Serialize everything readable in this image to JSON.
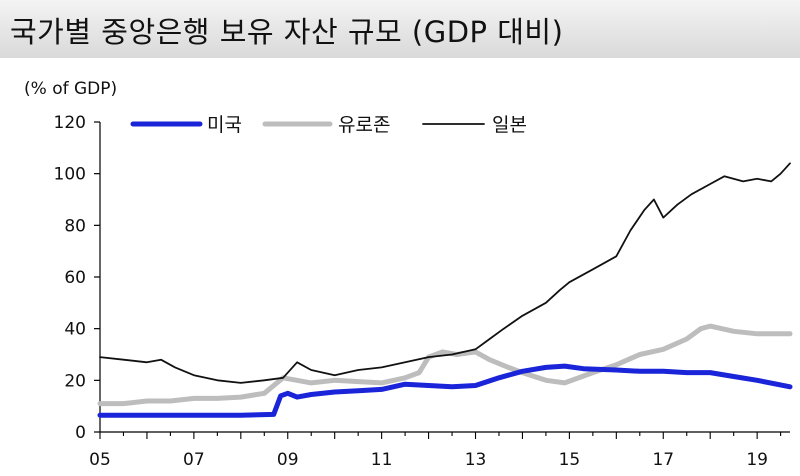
{
  "title": "국가별 중앙은행 보유 자산 규모 (GDP 대비)",
  "unit_label": "(% of GDP)",
  "chart_data": {
    "type": "line",
    "title": "국가별 중앙은행 보유 자산 규모 (GDP 대비)",
    "ylabel": "(% of GDP)",
    "xlabel": "",
    "ylim": [
      0,
      120
    ],
    "yticks": [
      0,
      20,
      40,
      60,
      80,
      100,
      120
    ],
    "xlim": [
      2005.0,
      2019.7
    ],
    "xtick_values": [
      2005,
      2007,
      2009,
      2011,
      2013,
      2015,
      2017,
      2019
    ],
    "xtick_labels": [
      "05",
      "07",
      "09",
      "11",
      "13",
      "15",
      "17",
      "19"
    ],
    "grid": false,
    "legend_position": "top",
    "series": [
      {
        "name": "미국",
        "color": "#1a24d8",
        "x": [
          2005.0,
          2006.0,
          2007.0,
          2008.0,
          2008.7,
          2008.85,
          2009.0,
          2009.2,
          2009.5,
          2010.0,
          2010.5,
          2011.0,
          2011.5,
          2012.0,
          2012.5,
          2013.0,
          2013.5,
          2014.0,
          2014.5,
          2014.9,
          2015.3,
          2016.0,
          2016.5,
          2017.0,
          2017.5,
          2018.0,
          2018.5,
          2019.0,
          2019.7
        ],
        "values": [
          6.5,
          6.5,
          6.5,
          6.5,
          6.8,
          14.0,
          15.0,
          13.5,
          14.5,
          15.5,
          16.0,
          16.5,
          18.5,
          18.0,
          17.5,
          18.0,
          21.0,
          23.5,
          25.0,
          25.5,
          24.5,
          24.0,
          23.5,
          23.5,
          23.0,
          23.0,
          21.5,
          20.0,
          17.5
        ]
      },
      {
        "name": "유로존",
        "color": "#bdbdbd",
        "x": [
          2005.0,
          2005.5,
          2006.0,
          2006.5,
          2007.0,
          2007.5,
          2008.0,
          2008.5,
          2008.9,
          2009.5,
          2010.0,
          2010.5,
          2011.0,
          2011.5,
          2011.8,
          2012.0,
          2012.3,
          2012.6,
          2013.0,
          2013.3,
          2013.7,
          2014.0,
          2014.5,
          2014.9,
          2015.5,
          2016.0,
          2016.5,
          2017.0,
          2017.5,
          2017.8,
          2018.0,
          2018.5,
          2019.0,
          2019.7
        ],
        "values": [
          11.0,
          11.0,
          12.0,
          12.0,
          13.0,
          13.0,
          13.5,
          15.0,
          21.0,
          19.0,
          20.0,
          19.5,
          19.0,
          21.0,
          23.0,
          29.0,
          31.0,
          30.0,
          31.0,
          28.0,
          25.0,
          23.0,
          20.0,
          19.0,
          23.0,
          26.0,
          30.0,
          32.0,
          36.0,
          40.0,
          41.0,
          39.0,
          38.0,
          38.0
        ]
      },
      {
        "name": "일본",
        "color": "#111111",
        "x": [
          2005.0,
          2005.5,
          2006.0,
          2006.3,
          2006.6,
          2007.0,
          2007.5,
          2008.0,
          2008.5,
          2008.9,
          2009.2,
          2009.5,
          2010.0,
          2010.5,
          2011.0,
          2011.5,
          2012.0,
          2012.5,
          2013.0,
          2013.3,
          2013.6,
          2014.0,
          2014.5,
          2014.8,
          2015.0,
          2015.5,
          2016.0,
          2016.3,
          2016.6,
          2016.8,
          2017.0,
          2017.3,
          2017.6,
          2018.0,
          2018.3,
          2018.7,
          2019.0,
          2019.3,
          2019.5,
          2019.7
        ],
        "values": [
          29.0,
          28.0,
          27.0,
          28.0,
          25.0,
          22.0,
          20.0,
          19.0,
          20.0,
          21.0,
          27.0,
          24.0,
          22.0,
          24.0,
          25.0,
          27.0,
          29.0,
          30.0,
          32.0,
          36.0,
          40.0,
          45.0,
          50.0,
          55.0,
          58.0,
          63.0,
          68.0,
          78.0,
          86.0,
          90.0,
          83.0,
          88.0,
          92.0,
          96.0,
          99.0,
          97.0,
          98.0,
          97.0,
          100.0,
          104.0
        ]
      }
    ]
  }
}
